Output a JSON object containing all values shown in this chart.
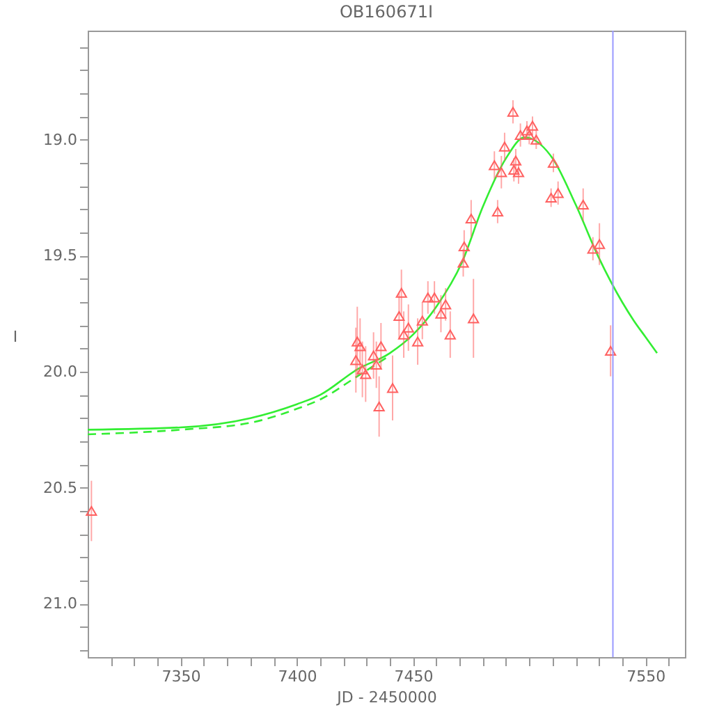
{
  "chart_data": {
    "type": "scatter",
    "title": "OB160671I",
    "xlabel": "JD - 2450000",
    "ylabel": "I",
    "xlim": [
      7310,
      7567
    ],
    "ylim": [
      21.23,
      18.53
    ],
    "xticks": [
      {
        "value": 7320,
        "label": null
      },
      {
        "value": 7330,
        "label": null
      },
      {
        "value": 7340,
        "label": null
      },
      7350,
      {
        "value": 7360,
        "label": null
      },
      {
        "value": 7370,
        "label": null
      },
      {
        "value": 7380,
        "label": null
      },
      {
        "value": 7390,
        "label": null
      },
      7400,
      {
        "value": 7410,
        "label": null
      },
      {
        "value": 7420,
        "label": null
      },
      {
        "value": 7430,
        "label": null
      },
      {
        "value": 7440,
        "label": null
      },
      7450,
      {
        "value": 7460,
        "label": null
      },
      {
        "value": 7470,
        "label": null
      },
      {
        "value": 7480,
        "label": null
      },
      {
        "value": 7490,
        "label": null
      },
      {
        "value": 7500,
        "label": null
      },
      {
        "value": 7510,
        "label": null
      },
      {
        "value": 7520,
        "label": null
      },
      {
        "value": 7530,
        "label": null
      },
      {
        "value": 7540,
        "label": null
      },
      7550,
      {
        "value": 7560,
        "label": null
      }
    ],
    "yticks": [
      {
        "value": 18.6,
        "label": null
      },
      {
        "value": 18.7,
        "label": null
      },
      {
        "value": 18.8,
        "label": null
      },
      {
        "value": 18.9,
        "label": null
      },
      {
        "value": 19.0,
        "label": "19.0"
      },
      {
        "value": 19.1,
        "label": null
      },
      {
        "value": 19.2,
        "label": null
      },
      {
        "value": 19.3,
        "label": null
      },
      {
        "value": 19.4,
        "label": null
      },
      19.5,
      {
        "value": 19.6,
        "label": null
      },
      {
        "value": 19.7,
        "label": null
      },
      {
        "value": 19.8,
        "label": null
      },
      {
        "value": 19.9,
        "label": null
      },
      {
        "value": 20.0,
        "label": "20.0"
      },
      {
        "value": 20.1,
        "label": null
      },
      {
        "value": 20.2,
        "label": null
      },
      {
        "value": 20.3,
        "label": null
      },
      {
        "value": 20.4,
        "label": null
      },
      20.5,
      {
        "value": 20.6,
        "label": null
      },
      {
        "value": 20.7,
        "label": null
      },
      {
        "value": 20.8,
        "label": null
      },
      {
        "value": 20.9,
        "label": null
      },
      {
        "value": 21.0,
        "label": "21.0"
      },
      {
        "value": 21.1,
        "label": null
      },
      {
        "value": 21.2,
        "label": null
      }
    ],
    "grid": false,
    "ref_lines": [
      {
        "axis": "x",
        "value": 7536,
        "color": "#9999ff"
      }
    ],
    "series": [
      {
        "color": "#ff6060",
        "marker": "triangle",
        "x": [
          7311.6,
          7425.4,
          7426,
          7427.2,
          7428.2,
          7429.6,
          7433,
          7434.2,
          7435.4,
          7436.2,
          7441.2,
          7444,
          7445,
          7446,
          7448,
          7452,
          7454,
          7456.4,
          7459.2,
          7462,
          7464,
          7466,
          7471.6,
          7472,
          7475,
          7476,
          7485,
          7486.4,
          7488,
          7489.4,
          7493,
          7493.4,
          7494.2,
          7495.4,
          7496.2,
          7499,
          7500,
          7503,
          7501.4,
          7509.4,
          7510.4,
          7512.4,
          7523.2,
          7527.4,
          7530.2,
          7535
        ],
        "values": [
          20.6,
          19.95,
          19.87,
          19.89,
          19.99,
          20.01,
          19.93,
          19.97,
          20.15,
          19.89,
          20.07,
          19.76,
          19.66,
          19.84,
          19.81,
          19.87,
          19.78,
          19.68,
          19.68,
          19.75,
          19.71,
          19.84,
          19.53,
          19.46,
          19.34,
          19.77,
          19.11,
          19.31,
          19.14,
          19.03,
          18.88,
          19.13,
          19.09,
          19.14,
          18.98,
          18.96,
          18.98,
          19.0,
          18.94,
          19.25,
          19.1,
          19.23,
          19.28,
          19.47,
          19.45,
          19.91
        ],
        "errors": [
          0.13,
          0.14,
          0.15,
          0.12,
          0.12,
          0.12,
          0.1,
          0.1,
          0.13,
          0.1,
          0.14,
          0.1,
          0.1,
          0.1,
          0.1,
          0.1,
          0.08,
          0.07,
          0.07,
          0.08,
          0.07,
          0.1,
          0.06,
          0.07,
          0.08,
          0.17,
          0.06,
          0.05,
          0.07,
          0.06,
          0.05,
          0.05,
          0.05,
          0.05,
          0.05,
          0.04,
          0.04,
          0.04,
          0.04,
          0.04,
          0.04,
          0.05,
          0.07,
          0.05,
          0.09,
          0.11
        ]
      },
      {
        "type": "line",
        "color": "#33ee33",
        "line_style": "solid",
        "x": [
          7310,
          7350,
          7380,
          7400,
          7410,
          7426,
          7440,
          7450,
          7460,
          7471,
          7480,
          7490,
          7498,
          7510,
          7520,
          7530,
          7540,
          7545,
          7550,
          7555
        ],
        "values": [
          20.25,
          20.24,
          20.2,
          20.14,
          20.1,
          19.99,
          19.92,
          19.84,
          19.72,
          19.53,
          19.29,
          19.08,
          18.99,
          19.08,
          19.28,
          19.51,
          19.7,
          19.78,
          19.85,
          19.92
        ]
      },
      {
        "type": "line",
        "color": "#33ee33",
        "line_style": "dashed",
        "x": [
          7310,
          7350,
          7380,
          7400,
          7410,
          7426,
          7440
        ],
        "values": [
          20.27,
          20.25,
          20.22,
          20.16,
          20.12,
          20.02,
          19.93
        ]
      }
    ]
  }
}
